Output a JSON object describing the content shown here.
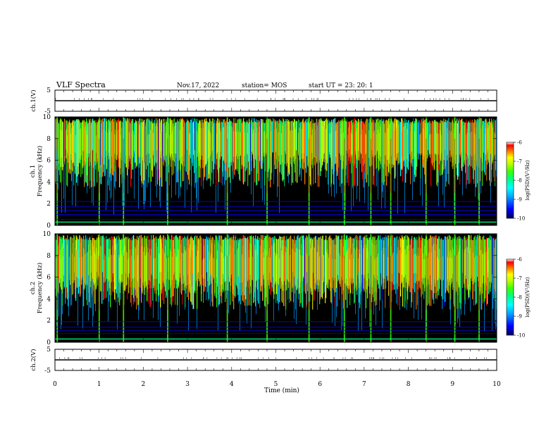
{
  "header": {
    "title": "VLF Spectra",
    "date": "Nov.17, 2022",
    "station": "station= MOS",
    "start": "start  UT  =   23: 20: 1"
  },
  "colors": {
    "background": "#000000",
    "colormap": [
      "#00005a",
      "#0000ff",
      "#00a0ff",
      "#00ffff",
      "#00ff80",
      "#40ff00",
      "#c0ff00",
      "#ffff00",
      "#ff8000",
      "#ff0000",
      "#ffffff"
    ]
  },
  "chart_data": [
    {
      "type": "line",
      "id": "waveform-ch1",
      "ylabel": "ch.1(V)",
      "ylim": [
        -5,
        5
      ],
      "y_ticks": [
        "5",
        "-5"
      ],
      "x": [
        0,
        10
      ],
      "values": [
        0,
        0
      ]
    },
    {
      "type": "heatmap",
      "id": "spectrogram-ch1",
      "ylabel": "ch.1\nFrequency (kHz)",
      "ylim": [
        0,
        10
      ],
      "y_ticks": [
        "0",
        "2",
        "4",
        "6",
        "8",
        "10"
      ],
      "xlim": [
        0,
        10
      ],
      "colorbar": {
        "label": "log(PSD)(V²/Hz)",
        "ticks": [
          "-6",
          "-7",
          "-8",
          "-9",
          "-10"
        ],
        "range": [
          -10,
          -6
        ]
      },
      "strong_spikes_min": [
        0.05,
        1.0,
        1.55,
        2.55,
        3.9,
        4.8,
        5.75,
        6.55,
        7.15,
        7.6,
        8.4,
        9.05,
        9.6
      ],
      "narrowband_lines_khz": [
        0.3,
        0.55,
        1.0,
        1.4,
        1.75,
        2.2
      ]
    },
    {
      "type": "heatmap",
      "id": "spectrogram-ch2",
      "ylabel": "ch.2\nFrequency (kHz)",
      "ylim": [
        0,
        10
      ],
      "y_ticks": [
        "0",
        "2",
        "4",
        "6",
        "8",
        "10"
      ],
      "xlim": [
        0,
        10
      ],
      "colorbar": {
        "label": "log(PSD)(V²/Hz)",
        "ticks": [
          "-6",
          "-7",
          "-8",
          "-9",
          "-10"
        ],
        "range": [
          -10,
          -6
        ]
      },
      "strong_spikes_min": [
        0.05,
        1.0,
        1.55,
        2.55,
        3.9,
        4.8,
        5.75,
        6.55,
        7.15,
        7.6,
        8.4,
        9.05,
        9.6
      ],
      "narrowband_lines_khz": [
        0.3,
        0.8,
        1.1,
        1.4,
        1.9
      ]
    },
    {
      "type": "line",
      "id": "waveform-ch2",
      "ylabel": "ch.2(V)",
      "ylim": [
        -5,
        5
      ],
      "y_ticks": [
        "5",
        "-5"
      ],
      "x": [
        0,
        10
      ],
      "values": [
        0,
        0
      ]
    }
  ],
  "x_axis": {
    "label": "Time  (min)",
    "ticks": [
      "0",
      "1",
      "2",
      "3",
      "4",
      "5",
      "6",
      "7",
      "8",
      "9",
      "10"
    ],
    "range": [
      0,
      10
    ]
  }
}
